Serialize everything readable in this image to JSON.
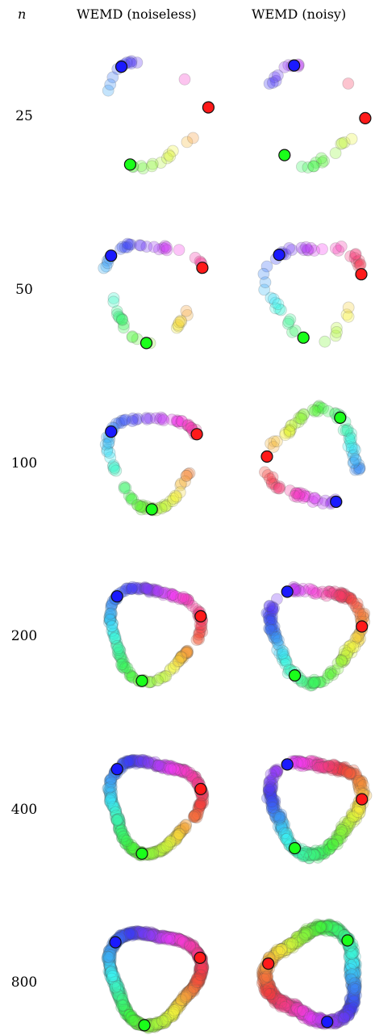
{
  "header": {
    "n_label": "n",
    "col1": "WEMD (noiseless)",
    "col2": "WEMD (noisy)"
  },
  "rows": [
    {
      "n": "25"
    },
    {
      "n": "50"
    },
    {
      "n": "100"
    },
    {
      "n": "200"
    },
    {
      "n": "400"
    },
    {
      "n": "800"
    }
  ],
  "chart_data": [
    {
      "type": "scatter",
      "title": "WEMD (noiseless)",
      "n": 25,
      "points": 25,
      "shape": "sparse arc"
    },
    {
      "type": "scatter",
      "title": "WEMD (noisy)",
      "n": 25,
      "points": 25,
      "shape": "sparse arc"
    },
    {
      "type": "scatter",
      "title": "WEMD (noiseless)",
      "n": 50,
      "points": 50,
      "shape": "broken ring"
    },
    {
      "type": "scatter",
      "title": "WEMD (noisy)",
      "n": 50,
      "points": 50,
      "shape": "broken ring"
    },
    {
      "type": "scatter",
      "title": "WEMD (noiseless)",
      "n": 100,
      "points": 100,
      "shape": "broken ring"
    },
    {
      "type": "scatter",
      "title": "WEMD (noisy)",
      "n": 100,
      "points": 100,
      "shape": "broken ring"
    },
    {
      "type": "scatter",
      "title": "WEMD (noiseless)",
      "n": 200,
      "points": 200,
      "shape": "triangular ring"
    },
    {
      "type": "scatter",
      "title": "WEMD (noisy)",
      "n": 200,
      "points": 200,
      "shape": "triangular ring"
    },
    {
      "type": "scatter",
      "title": "WEMD (noiseless)",
      "n": 400,
      "points": 400,
      "shape": "triangular ring"
    },
    {
      "type": "scatter",
      "title": "WEMD (noisy)",
      "n": 400,
      "points": 400,
      "shape": "triangular ring"
    },
    {
      "type": "scatter",
      "title": "WEMD (noiseless)",
      "n": 800,
      "points": 800,
      "shape": "closed triangular ring"
    },
    {
      "type": "scatter",
      "title": "WEMD (noisy)",
      "n": 800,
      "points": 800,
      "shape": "closed triangular ring"
    }
  ]
}
